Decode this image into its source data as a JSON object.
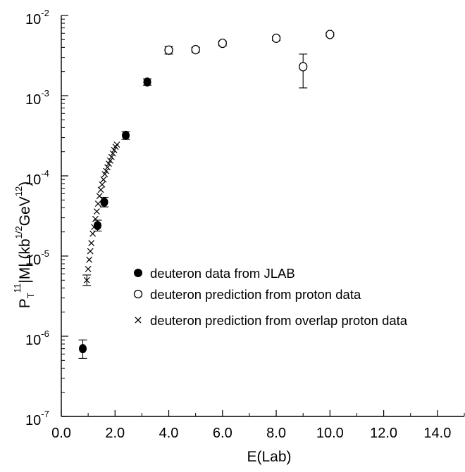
{
  "chart_data": {
    "type": "scatter",
    "xlabel": "E(Lab)",
    "ylabel": {
      "p": "P",
      "sub_t": "T",
      "sup_11": "11",
      "mid": "|M| (kb",
      "sup_half": "1/2",
      "gev": "GeV",
      "sup_12": "12",
      "close": ")"
    },
    "xlim": [
      0,
      15
    ],
    "ylim": [
      1e-07,
      0.01
    ],
    "y_scale": "log",
    "x_ticks": [
      "0.0",
      "2.0",
      "4.0",
      "6.0",
      "8.0",
      "10.0",
      "12.0",
      "14.0"
    ],
    "x_tick_values": [
      0,
      2,
      4,
      6,
      8,
      10,
      12,
      14
    ],
    "y_ticks": [
      {
        "base": "10",
        "exp": "-7",
        "value": 1e-07
      },
      {
        "base": "10",
        "exp": "-6",
        "value": 1e-06
      },
      {
        "base": "10",
        "exp": "-5",
        "value": 1e-05
      },
      {
        "base": "10",
        "exp": "-4",
        "value": 0.0001
      },
      {
        "base": "10",
        "exp": "-3",
        "value": 0.001
      },
      {
        "base": "10",
        "exp": "-2",
        "value": 0.01
      }
    ],
    "legend_position": "center",
    "series": [
      {
        "name": "deuteron data from JLAB",
        "marker": "filled-circle",
        "points": [
          {
            "x": 0.8,
            "y": 7e-07,
            "ylo": 5.3e-07,
            "yhi": 9e-07
          },
          {
            "x": 1.35,
            "y": 2.4e-05,
            "ylo": 2.05e-05,
            "yhi": 2.8e-05
          },
          {
            "x": 1.6,
            "y": 4.7e-05,
            "ylo": 4.1e-05,
            "yhi": 5.4e-05
          },
          {
            "x": 2.4,
            "y": 0.00032,
            "ylo": 0.000285,
            "yhi": 0.000355
          },
          {
            "x": 3.2,
            "y": 0.00148,
            "ylo": 0.00135,
            "yhi": 0.00162
          }
        ]
      },
      {
        "name": "deuteron prediction from proton data",
        "marker": "open-circle",
        "points": [
          {
            "x": 4.0,
            "y": 0.0037,
            "ylo": 0.0033,
            "yhi": 0.0041
          },
          {
            "x": 5.0,
            "y": 0.00375,
            "ylo": 0.0035,
            "yhi": 0.004
          },
          {
            "x": 6.0,
            "y": 0.0045,
            "ylo": 0.0042,
            "yhi": 0.0048
          },
          {
            "x": 8.0,
            "y": 0.0052,
            "ylo": 0.0049,
            "yhi": 0.0055
          },
          {
            "x": 9.0,
            "y": 0.0023,
            "ylo": 0.00125,
            "yhi": 0.0033
          },
          {
            "x": 10.0,
            "y": 0.0058,
            "ylo": 0.0055,
            "yhi": 0.0061
          }
        ]
      },
      {
        "name": "deuteron prediction from overlap proton data",
        "marker": "cross",
        "points": [
          {
            "x": 0.95,
            "y": 5e-06,
            "ylo": 4.3e-06,
            "yhi": 5.8e-06
          },
          {
            "x": 1.0,
            "y": 6.9e-06
          },
          {
            "x": 1.04,
            "y": 9e-06
          },
          {
            "x": 1.08,
            "y": 1.15e-05
          },
          {
            "x": 1.12,
            "y": 1.45e-05
          },
          {
            "x": 1.17,
            "y": 1.9e-05
          },
          {
            "x": 1.22,
            "y": 2.3e-05
          },
          {
            "x": 1.27,
            "y": 2.9e-05
          },
          {
            "x": 1.32,
            "y": 3.6e-05
          },
          {
            "x": 1.37,
            "y": 4.5e-05
          },
          {
            "x": 1.42,
            "y": 5.6e-05
          },
          {
            "x": 1.47,
            "y": 6.7e-05
          },
          {
            "x": 1.52,
            "y": 7.8e-05
          },
          {
            "x": 1.57,
            "y": 9e-05
          },
          {
            "x": 1.62,
            "y": 0.000105
          },
          {
            "x": 1.67,
            "y": 0.000115
          },
          {
            "x": 1.72,
            "y": 0.000128
          },
          {
            "x": 1.77,
            "y": 0.000142
          },
          {
            "x": 1.82,
            "y": 0.000155
          },
          {
            "x": 1.87,
            "y": 0.000172
          },
          {
            "x": 1.92,
            "y": 0.00019
          },
          {
            "x": 1.97,
            "y": 0.00021
          },
          {
            "x": 2.02,
            "y": 0.00023
          },
          {
            "x": 2.07,
            "y": 0.000245
          }
        ]
      }
    ]
  }
}
